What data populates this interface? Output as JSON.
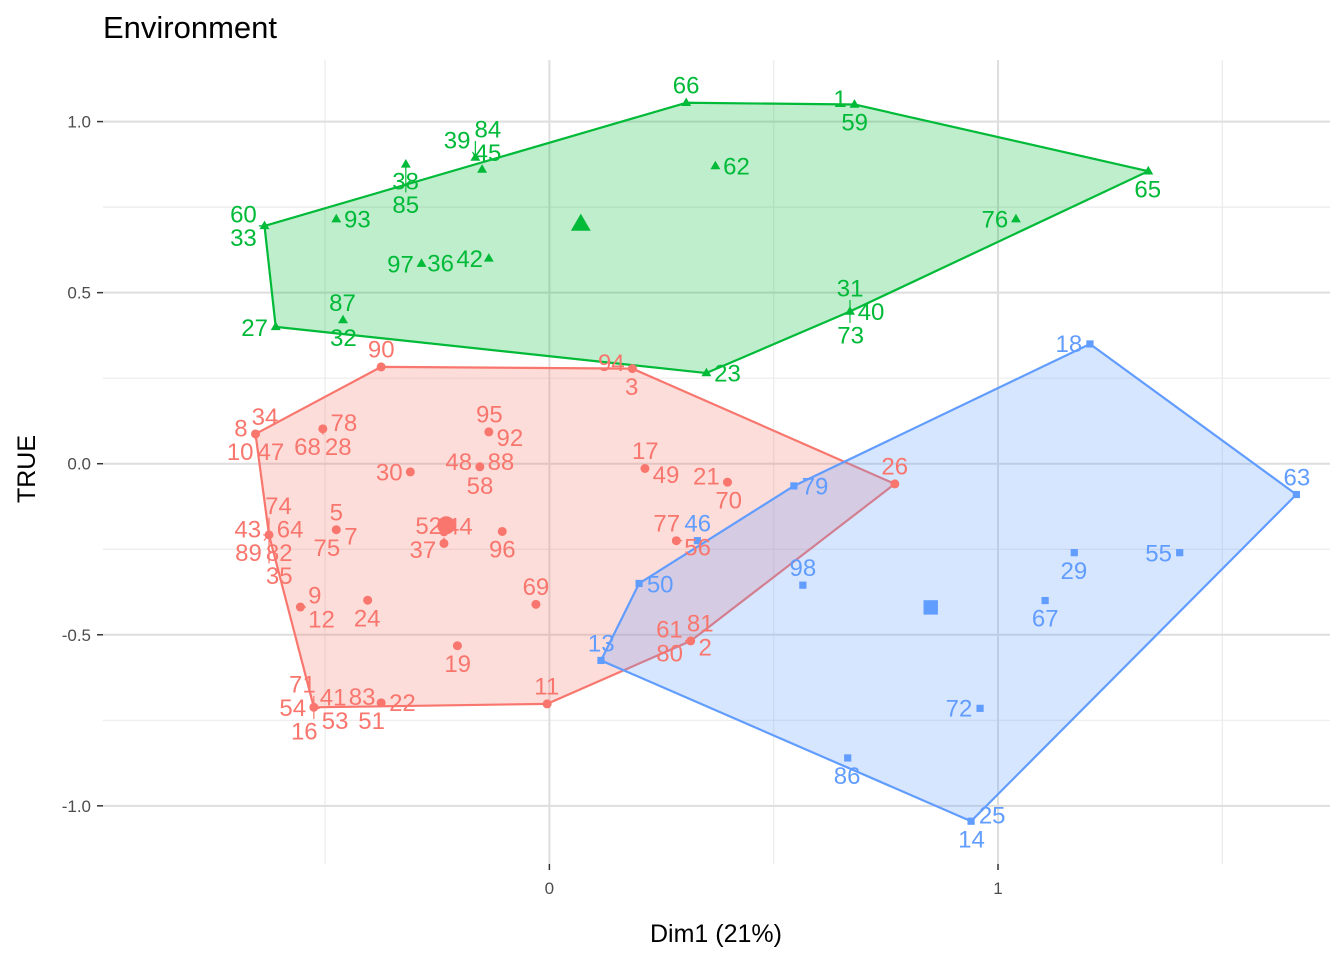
{
  "chart_data": {
    "type": "scatter",
    "title": "Environment",
    "xlabel": "Dim1 (21%)",
    "ylabel": "TRUE",
    "xlim": [
      -0.995,
      1.74
    ],
    "ylim": [
      -1.17,
      1.18
    ],
    "x_ticks": [
      {
        "value": 0,
        "label": "0"
      },
      {
        "value": 1,
        "label": "1"
      }
    ],
    "y_ticks": [
      {
        "value": 1.0,
        "label": "1.0"
      },
      {
        "value": 0.5,
        "label": "0.5"
      },
      {
        "value": 0.0,
        "label": "0.0"
      },
      {
        "value": -0.5,
        "label": "-0.5"
      },
      {
        "value": -1.0,
        "label": "-1.0"
      }
    ],
    "grid": true,
    "legend": "none",
    "colors": {
      "red": "#f8766d",
      "green": "#00ba38",
      "blue": "#619cff"
    },
    "series": [
      {
        "color": "#f8766d",
        "shape": "circle",
        "centroid": [
          -0.23,
          -0.18
        ],
        "hull": [
          "8",
          "90",
          "94",
          "26",
          "61",
          "13",
          "11",
          "54",
          "16",
          "43",
          "35"
        ],
        "points": [
          {
            "label": "2",
            "x": 0.315,
            "y": -0.518
          },
          {
            "label": "3",
            "x": 0.185,
            "y": 0.278
          },
          {
            "label": "5",
            "x": -0.475,
            "y": -0.193
          },
          {
            "label": "7",
            "x": -0.475,
            "y": -0.193
          },
          {
            "label": "8",
            "x": -0.655,
            "y": 0.087
          },
          {
            "label": "9",
            "x": -0.555,
            "y": -0.419
          },
          {
            "label": "10",
            "x": -0.655,
            "y": 0.087
          },
          {
            "label": "11",
            "x": -0.005,
            "y": -0.702
          },
          {
            "label": "12",
            "x": -0.555,
            "y": -0.419
          },
          {
            "label": "16",
            "x": -0.525,
            "y": -0.712
          },
          {
            "label": "17",
            "x": 0.213,
            "y": -0.014
          },
          {
            "label": "19",
            "x": -0.205,
            "y": -0.532
          },
          {
            "label": "21",
            "x": 0.397,
            "y": -0.054
          },
          {
            "label": "22",
            "x": -0.375,
            "y": -0.699
          },
          {
            "label": "24",
            "x": -0.405,
            "y": -0.399
          },
          {
            "label": "26",
            "x": 0.77,
            "y": -0.059
          },
          {
            "label": "28",
            "x": -0.505,
            "y": 0.102
          },
          {
            "label": "30",
            "x": -0.31,
            "y": -0.024
          },
          {
            "label": "34",
            "x": -0.655,
            "y": 0.087
          },
          {
            "label": "35",
            "x": -0.625,
            "y": -0.208
          },
          {
            "label": "37",
            "x": -0.235,
            "y": -0.233
          },
          {
            "label": "41",
            "x": -0.525,
            "y": -0.712
          },
          {
            "label": "43",
            "x": -0.625,
            "y": -0.208
          },
          {
            "label": "44",
            "x": -0.235,
            "y": -0.233
          },
          {
            "label": "47",
            "x": -0.655,
            "y": 0.087
          },
          {
            "label": "48",
            "x": -0.155,
            "y": -0.009
          },
          {
            "label": "49",
            "x": 0.213,
            "y": -0.014
          },
          {
            "label": "51",
            "x": -0.375,
            "y": -0.699
          },
          {
            "label": "52",
            "x": -0.235,
            "y": -0.233
          },
          {
            "label": "53",
            "x": -0.525,
            "y": -0.712
          },
          {
            "label": "54",
            "x": -0.525,
            "y": -0.712
          },
          {
            "label": "56",
            "x": 0.283,
            "y": -0.225
          },
          {
            "label": "58",
            "x": -0.155,
            "y": -0.009
          },
          {
            "label": "61",
            "x": 0.315,
            "y": -0.518
          },
          {
            "label": "64",
            "x": -0.625,
            "y": -0.208
          },
          {
            "label": "68",
            "x": -0.505,
            "y": 0.102
          },
          {
            "label": "69",
            "x": -0.03,
            "y": -0.411
          },
          {
            "label": "70",
            "x": 0.397,
            "y": -0.054
          },
          {
            "label": "71",
            "x": -0.525,
            "y": -0.712
          },
          {
            "label": "74",
            "x": -0.625,
            "y": -0.208
          },
          {
            "label": "75",
            "x": -0.475,
            "y": -0.193
          },
          {
            "label": "77",
            "x": 0.283,
            "y": -0.225
          },
          {
            "label": "78",
            "x": -0.505,
            "y": 0.102
          },
          {
            "label": "80",
            "x": 0.315,
            "y": -0.518
          },
          {
            "label": "81",
            "x": 0.315,
            "y": -0.518
          },
          {
            "label": "82",
            "x": -0.625,
            "y": -0.208
          },
          {
            "label": "83",
            "x": -0.375,
            "y": -0.699
          },
          {
            "label": "88",
            "x": -0.155,
            "y": -0.009
          },
          {
            "label": "89",
            "x": -0.625,
            "y": -0.208
          },
          {
            "label": "90",
            "x": -0.375,
            "y": 0.283
          },
          {
            "label": "92",
            "x": -0.135,
            "y": 0.093
          },
          {
            "label": "94",
            "x": 0.185,
            "y": 0.278
          },
          {
            "label": "95",
            "x": -0.135,
            "y": 0.093
          },
          {
            "label": "96",
            "x": -0.105,
            "y": -0.198
          }
        ],
        "extra_points": [
          {
            "x": -0.235,
            "y": -0.199
          },
          {
            "x": -0.405,
            "y": -0.399
          }
        ]
      },
      {
        "color": "#00ba38",
        "shape": "triangle",
        "centroid": [
          0.07,
          0.7
        ],
        "hull": [
          "66",
          "1",
          "65",
          "31",
          "23",
          "27",
          "33"
        ],
        "points": [
          {
            "label": "1",
            "x": 0.68,
            "y": 1.05
          },
          {
            "label": "23",
            "x": 0.35,
            "y": 0.265
          },
          {
            "label": "27",
            "x": -0.61,
            "y": 0.4
          },
          {
            "label": "31",
            "x": 0.67,
            "y": 0.445
          },
          {
            "label": "32",
            "x": -0.46,
            "y": 0.42
          },
          {
            "label": "33",
            "x": -0.635,
            "y": 0.695
          },
          {
            "label": "36",
            "x": -0.285,
            "y": 0.585
          },
          {
            "label": "38",
            "x": -0.32,
            "y": 0.875
          },
          {
            "label": "39",
            "x": -0.165,
            "y": 0.895
          },
          {
            "label": "40",
            "x": 0.67,
            "y": 0.445
          },
          {
            "label": "42",
            "x": -0.135,
            "y": 0.6
          },
          {
            "label": "45",
            "x": -0.15,
            "y": 0.86
          },
          {
            "label": "59",
            "x": 0.68,
            "y": 1.05
          },
          {
            "label": "60",
            "x": -0.635,
            "y": 0.695
          },
          {
            "label": "62",
            "x": 0.37,
            "y": 0.87
          },
          {
            "label": "65",
            "x": 1.335,
            "y": 0.855
          },
          {
            "label": "66",
            "x": 0.305,
            "y": 1.055
          },
          {
            "label": "73",
            "x": 0.67,
            "y": 0.445
          },
          {
            "label": "76",
            "x": 1.04,
            "y": 0.715
          },
          {
            "label": "84",
            "x": -0.165,
            "y": 0.895
          },
          {
            "label": "85",
            "x": -0.32,
            "y": 0.875
          },
          {
            "label": "87",
            "x": -0.46,
            "y": 0.42
          },
          {
            "label": "93",
            "x": -0.475,
            "y": 0.715
          },
          {
            "label": "97",
            "x": -0.285,
            "y": 0.585
          }
        ],
        "extra_points": []
      },
      {
        "color": "#619cff",
        "shape": "square",
        "centroid": [
          0.85,
          -0.42
        ],
        "hull": [
          "18",
          "63",
          "14",
          "13",
          "50",
          "79"
        ],
        "points": [
          {
            "label": "13",
            "x": 0.115,
            "y": -0.575
          },
          {
            "label": "14",
            "x": 0.94,
            "y": -1.045
          },
          {
            "label": "18",
            "x": 1.205,
            "y": 0.35
          },
          {
            "label": "25",
            "x": 0.94,
            "y": -1.045
          },
          {
            "label": "29",
            "x": 1.17,
            "y": -0.26
          },
          {
            "label": "46",
            "x": 0.33,
            "y": -0.225
          },
          {
            "label": "50",
            "x": 0.2,
            "y": -0.35
          },
          {
            "label": "55",
            "x": 1.405,
            "y": -0.26
          },
          {
            "label": "63",
            "x": 1.665,
            "y": -0.09
          },
          {
            "label": "67",
            "x": 1.105,
            "y": -0.4
          },
          {
            "label": "72",
            "x": 0.96,
            "y": -0.715
          },
          {
            "label": "79",
            "x": 0.545,
            "y": -0.065
          },
          {
            "label": "86",
            "x": 0.665,
            "y": -0.86
          },
          {
            "label": "98",
            "x": 0.565,
            "y": -0.355
          }
        ],
        "extra_points": []
      }
    ]
  }
}
